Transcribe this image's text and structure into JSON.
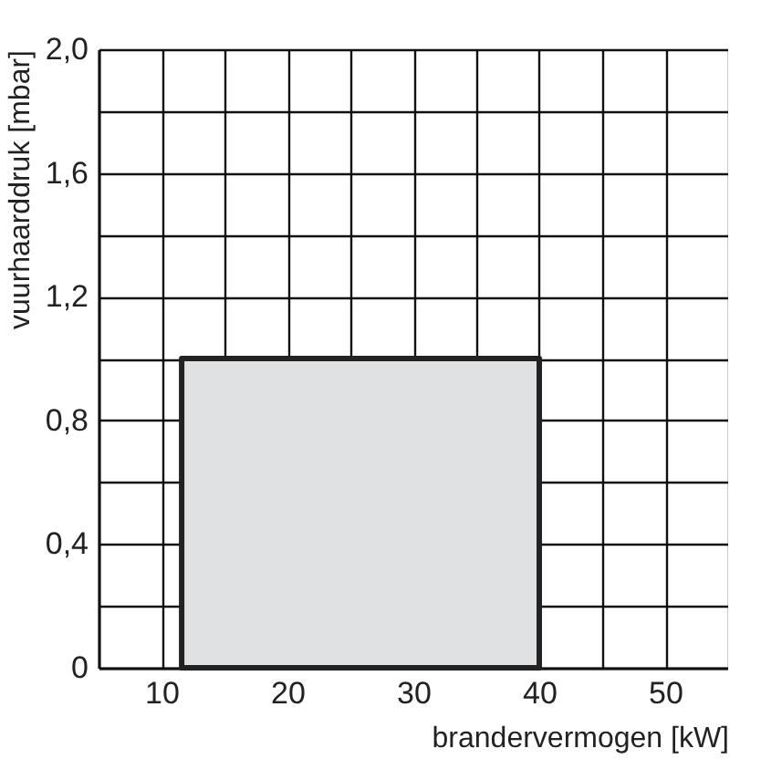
{
  "chart_data": {
    "type": "area",
    "xlabel": "brandervermogen [kW]",
    "ylabel": "vuurhaarddruk [mbar]",
    "x": [
      11.6,
      40
    ],
    "values": [
      1.0,
      1.0
    ],
    "color": "#e0e1e3",
    "xlim": [
      5,
      55
    ],
    "ylim": [
      0,
      2.0
    ],
    "xticks": [
      {
        "value": 5,
        "label": null
      },
      10,
      {
        "value": 15,
        "label": null
      },
      20,
      {
        "value": 25,
        "label": null
      },
      30,
      {
        "value": 35,
        "label": null
      },
      40,
      {
        "value": 45,
        "label": null
      },
      50,
      {
        "value": 55,
        "label": null
      }
    ],
    "yticks": [
      {
        "value": 0,
        "label": "0"
      },
      {
        "value": 0.2,
        "label": null
      },
      {
        "value": 0.4,
        "label": "0,4"
      },
      {
        "value": 0.6,
        "label": null
      },
      {
        "value": 0.8,
        "label": "0,8"
      },
      {
        "value": 1.0,
        "label": null
      },
      {
        "value": 1.2,
        "label": "1,2"
      },
      {
        "value": 1.4,
        "label": null
      },
      {
        "value": 1.6,
        "label": "1,6"
      },
      {
        "value": 1.8,
        "label": null
      },
      {
        "value": 2.0,
        "label": "2,0"
      }
    ],
    "grid": true
  }
}
